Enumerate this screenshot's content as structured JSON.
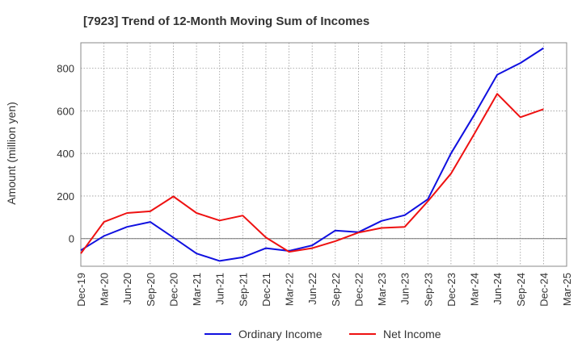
{
  "chart_data": {
    "type": "line",
    "title": "[7923]  Trend of 12-Month Moving Sum of Incomes",
    "xlabel": "",
    "ylabel": "Amount (million yen)",
    "ylim": [
      -130,
      920
    ],
    "yticks": [
      0,
      200,
      400,
      600,
      800
    ],
    "grid": true,
    "legend_position": "bottom",
    "categories": [
      "Dec-19",
      "Mar-20",
      "Jun-20",
      "Sep-20",
      "Dec-20",
      "Mar-21",
      "Jun-21",
      "Sep-21",
      "Dec-21",
      "Mar-22",
      "Jun-22",
      "Sep-22",
      "Dec-22",
      "Mar-23",
      "Jun-23",
      "Sep-23",
      "Dec-23",
      "Mar-24",
      "Jun-24",
      "Sep-24",
      "Dec-24",
      "Mar-25"
    ],
    "series": [
      {
        "name": "Ordinary Income",
        "color": "#1010e0",
        "values": [
          -55,
          12,
          55,
          78,
          5,
          -70,
          -105,
          -88,
          -45,
          -58,
          -32,
          38,
          30,
          83,
          110,
          185,
          400,
          580,
          770,
          825,
          895,
          null
        ]
      },
      {
        "name": "Net Income",
        "color": "#ee1111",
        "values": [
          -70,
          78,
          120,
          128,
          198,
          120,
          85,
          108,
          5,
          -62,
          -45,
          -12,
          28,
          50,
          55,
          175,
          305,
          490,
          680,
          570,
          608,
          null
        ]
      }
    ]
  }
}
